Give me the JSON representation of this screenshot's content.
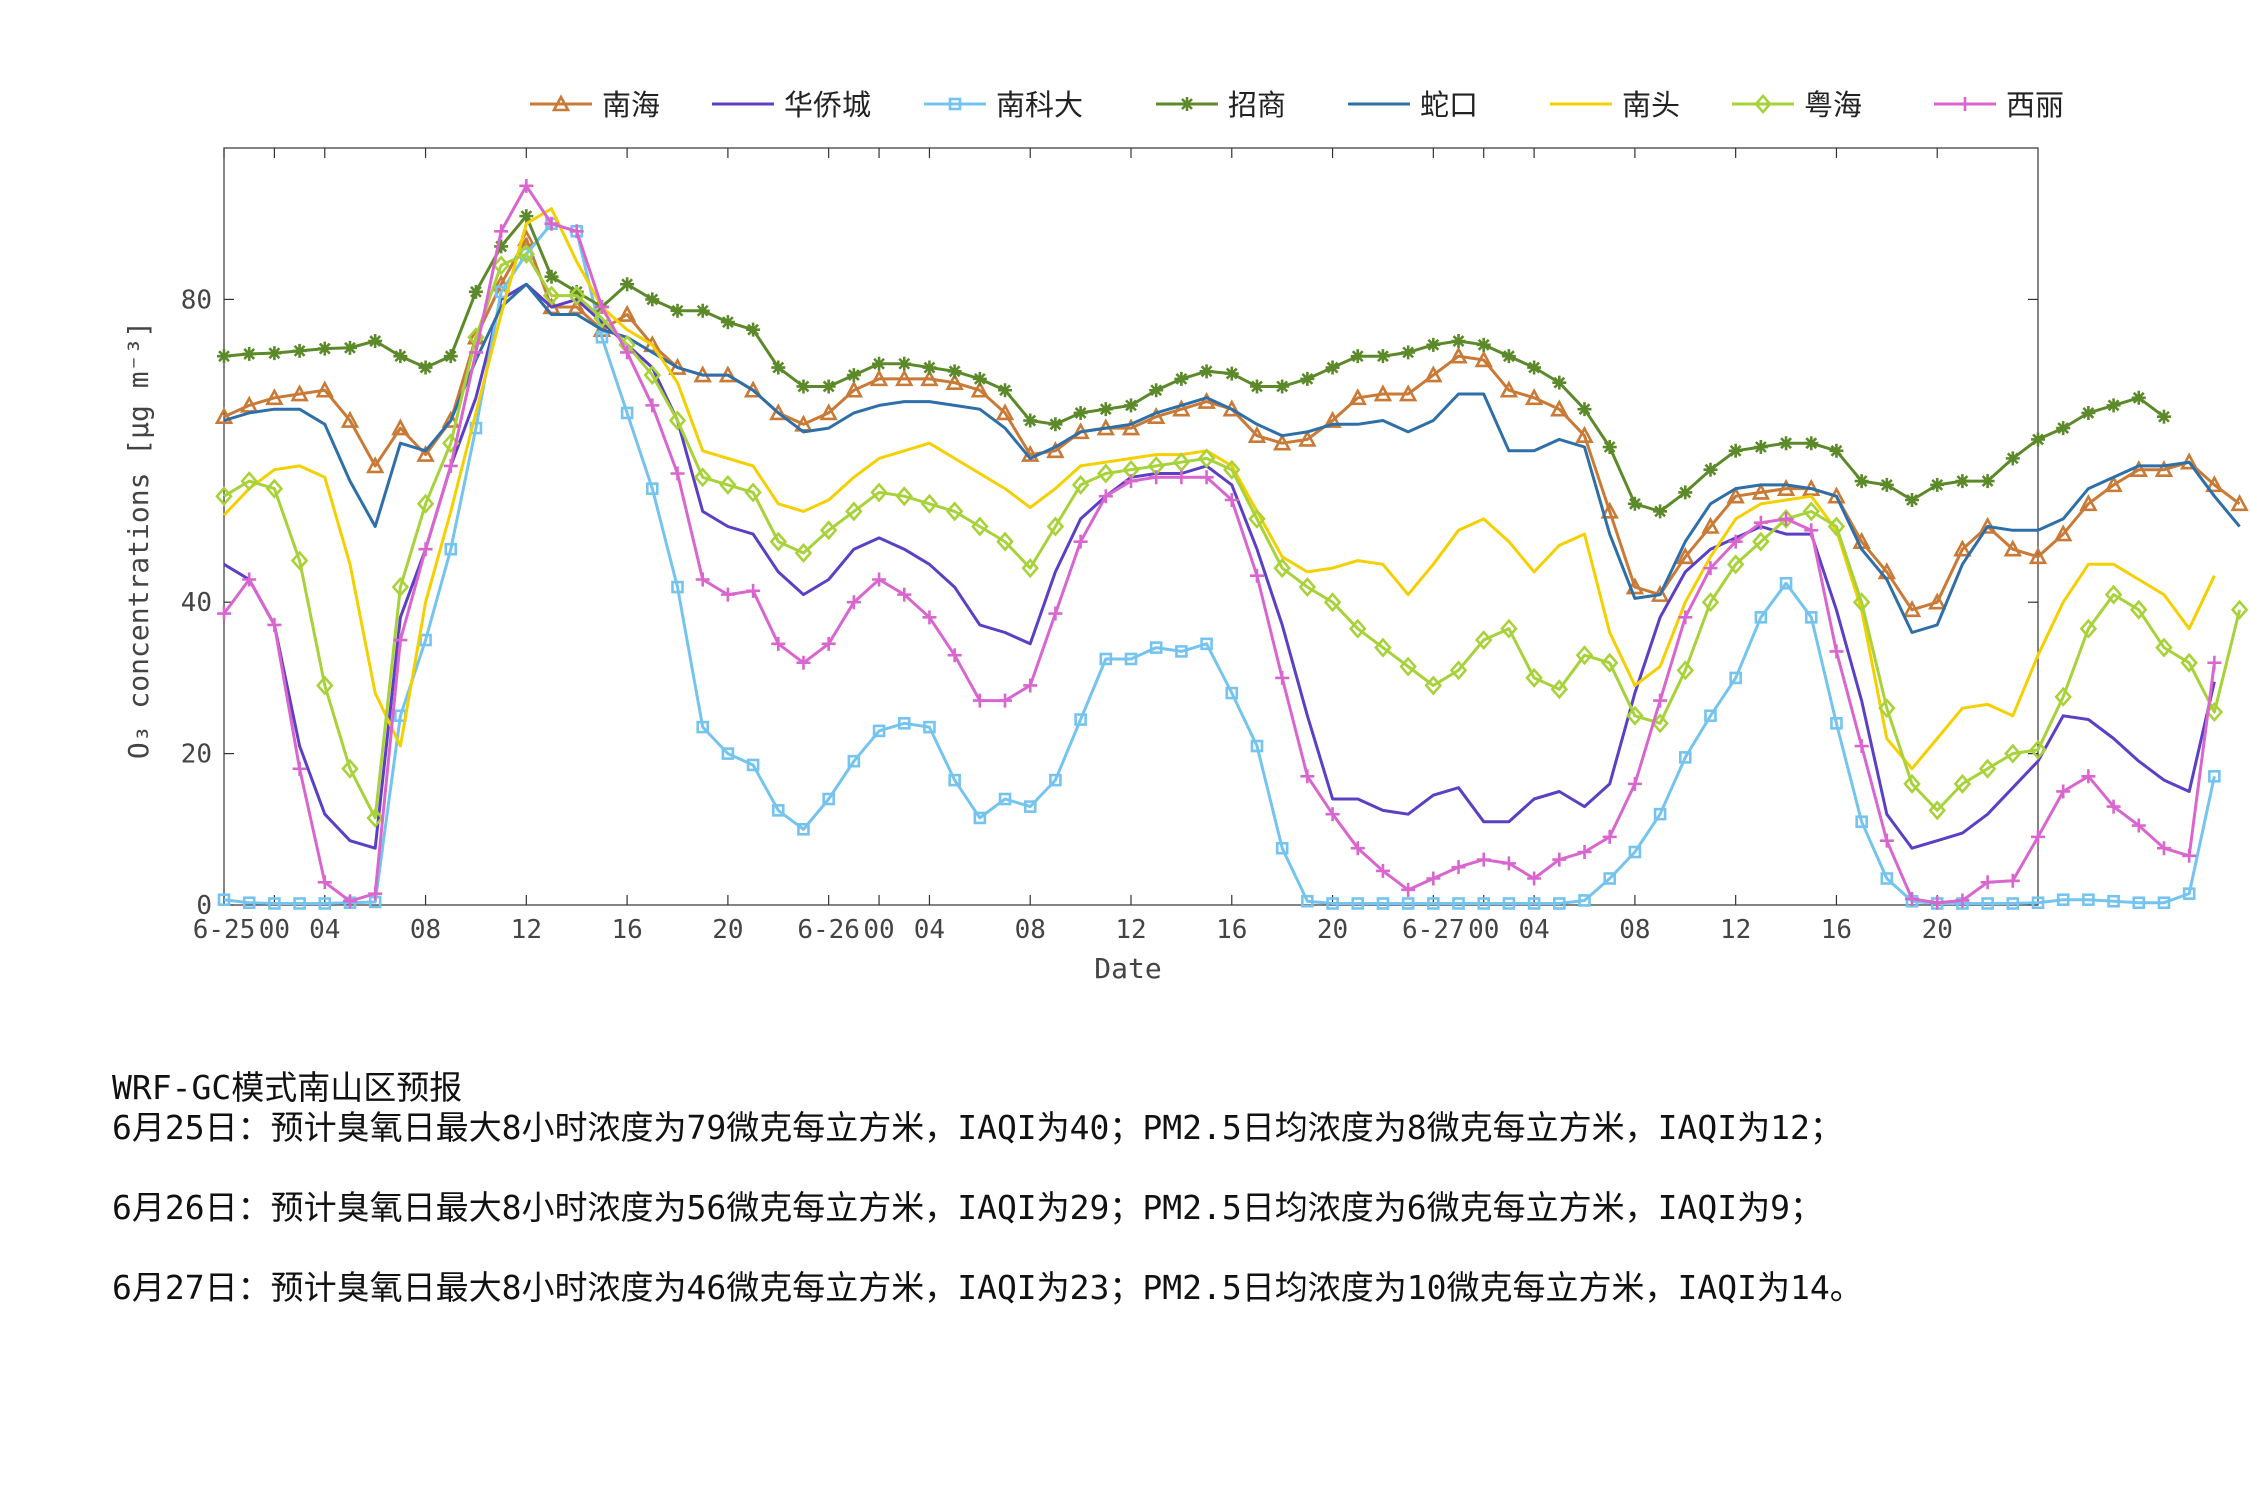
{
  "chart_data": {
    "type": "line",
    "title": "",
    "xlabel": "Date",
    "ylabel": "O₃ concentrations [μg m⁻³]",
    "ylim": [
      0,
      100
    ],
    "yticks": [
      0,
      20,
      40,
      80
    ],
    "xlim": [
      0,
      72
    ],
    "xticks": [
      {
        "x": 0,
        "label": "6-25"
      },
      {
        "x": 2,
        "label": "00"
      },
      {
        "x": 4,
        "label": "04"
      },
      {
        "x": 8,
        "label": "08"
      },
      {
        "x": 12,
        "label": "12"
      },
      {
        "x": 16,
        "label": "16"
      },
      {
        "x": 20,
        "label": "20"
      },
      {
        "x": 24,
        "label": "6-26"
      },
      {
        "x": 26,
        "label": "00"
      },
      {
        "x": 28,
        "label": "04"
      },
      {
        "x": 32,
        "label": "08"
      },
      {
        "x": 36,
        "label": "12"
      },
      {
        "x": 40,
        "label": "16"
      },
      {
        "x": 44,
        "label": "20"
      },
      {
        "x": 48,
        "label": "6-27"
      },
      {
        "x": 50,
        "label": "00"
      },
      {
        "x": 52,
        "label": "04"
      },
      {
        "x": 56,
        "label": "08"
      },
      {
        "x": 60,
        "label": "12"
      },
      {
        "x": 64,
        "label": "16"
      },
      {
        "x": 68,
        "label": "20"
      }
    ],
    "grid": false,
    "legend_position": "top",
    "series": [
      {
        "name": "南海",
        "color": "#c87a36",
        "marker": "triangle",
        "values": [
          64.5,
          66,
          67,
          67.5,
          68,
          64,
          58,
          63,
          59.5,
          64,
          75,
          82,
          88,
          79,
          79,
          76,
          78,
          74,
          71,
          70,
          70,
          68,
          65,
          63.5,
          65,
          68,
          69.5,
          69.5,
          69.5,
          69,
          68,
          65,
          59.5,
          60,
          62.5,
          63,
          63,
          64.5,
          65.5,
          66.5,
          65.5,
          62,
          61,
          61.5,
          64,
          67,
          67.5,
          67.5,
          70,
          72.5,
          72,
          68,
          67,
          65.5,
          62,
          52,
          42,
          41,
          46,
          50,
          54,
          54.5,
          55,
          55,
          54,
          48,
          44,
          39,
          40,
          47,
          50,
          47,
          46,
          49,
          53,
          55.5,
          57.5,
          57.5,
          58.5,
          55.5,
          53
        ]
      },
      {
        "name": "华侨城",
        "color": "#5b3fc4",
        "marker": "none",
        "values": [
          45,
          43,
          37,
          21,
          12,
          8.5,
          7.5,
          38,
          47,
          58,
          67,
          80,
          82,
          79,
          80,
          77,
          74,
          71,
          64,
          52,
          50,
          49,
          44,
          41,
          43,
          47,
          48.5,
          47,
          45,
          42,
          37,
          36,
          34.5,
          44,
          51,
          54,
          56.5,
          57,
          57,
          58,
          55.5,
          47,
          37,
          25,
          14,
          14,
          12.5,
          12,
          14.5,
          15.5,
          11,
          11,
          14,
          15,
          13,
          16,
          28,
          38,
          44,
          47,
          48.5,
          50,
          49,
          49,
          39,
          27,
          12,
          7.5,
          8.5,
          9.5,
          12,
          15.5,
          19,
          25,
          24.5,
          22,
          19,
          16.5,
          15,
          29.5
        ]
      },
      {
        "name": "南科大",
        "color": "#75c4ef",
        "marker": "square",
        "values": [
          0.7,
          0.3,
          0.2,
          0.2,
          0.2,
          0.3,
          0.4,
          25,
          35,
          47,
          63,
          81,
          86,
          90,
          89,
          75,
          65,
          55,
          42,
          23.5,
          20,
          18.5,
          12.5,
          10,
          14,
          19,
          23,
          24,
          23.5,
          16.5,
          11.5,
          14,
          13,
          16.5,
          24.5,
          32.5,
          32.5,
          34,
          33.5,
          34.5,
          28,
          21,
          7.5,
          0.5,
          0.2,
          0.2,
          0.2,
          0.2,
          0.2,
          0.2,
          0.2,
          0.2,
          0.2,
          0.2,
          0.6,
          3.5,
          7,
          12,
          19.5,
          25,
          30,
          38,
          42.5,
          38,
          24,
          11,
          3.5,
          0.5,
          0.2,
          0.2,
          0.2,
          0.2,
          0.3,
          0.7,
          0.7,
          0.5,
          0.3,
          0.3,
          1.5,
          17
        ]
      },
      {
        "name": "招商",
        "color": "#5c8a2a",
        "marker": "star",
        "values": [
          72.5,
          72.8,
          72.9,
          73.2,
          73.5,
          73.6,
          74.5,
          72.5,
          71,
          72.5,
          81,
          87,
          91,
          83,
          81,
          79,
          82,
          80,
          78.5,
          78.5,
          77,
          76,
          71,
          68.5,
          68.5,
          70,
          71.5,
          71.5,
          71,
          70.5,
          69.5,
          68,
          64,
          63.5,
          65,
          65.5,
          66,
          68,
          69.5,
          70.5,
          70.2,
          68.5,
          68.5,
          69.5,
          71,
          72.5,
          72.5,
          73,
          74,
          74.5,
          74,
          72.5,
          71,
          69,
          65.5,
          60.5,
          53,
          52,
          54.5,
          57.5,
          60,
          60.5,
          61,
          61,
          60,
          56,
          55.5,
          53.5,
          55.5,
          56,
          56,
          59,
          61.5,
          63,
          65,
          66,
          67,
          64.5
        ]
      },
      {
        "name": "蛇口",
        "color": "#2f6fa8",
        "marker": "none",
        "values": [
          64,
          65,
          65.5,
          65.5,
          63.5,
          56,
          50,
          61,
          60,
          64,
          72,
          79,
          82,
          78,
          78,
          76,
          75,
          73,
          71,
          70,
          70,
          68,
          65,
          62.5,
          63,
          65,
          66,
          66.5,
          66.5,
          66,
          65.5,
          63,
          59,
          60.5,
          62.5,
          63,
          63.5,
          65,
          66,
          67,
          65.5,
          63.5,
          62,
          62.5,
          63.5,
          63.5,
          64,
          62.5,
          64,
          67.5,
          67.5,
          60,
          60,
          61.5,
          60.5,
          49,
          40.5,
          41,
          48,
          53,
          55,
          55.5,
          55.5,
          55,
          54,
          47,
          43,
          36,
          37,
          45,
          50,
          49.5,
          49.5,
          51,
          55,
          56.5,
          58,
          58,
          58.5,
          54,
          50
        ]
      },
      {
        "name": "南头",
        "color": "#f5d000",
        "marker": "none",
        "values": [
          51.5,
          55,
          57.5,
          58,
          56.5,
          45,
          28,
          21,
          40,
          52,
          65,
          78,
          90,
          92,
          85,
          79,
          76,
          74,
          69,
          60,
          59,
          58,
          53,
          52,
          53.5,
          56.5,
          59,
          60,
          61,
          59,
          57,
          55,
          52.5,
          55,
          58,
          58.5,
          59,
          59.5,
          59.5,
          60,
          58,
          52,
          46,
          44,
          44.5,
          45.5,
          45,
          41,
          45,
          49.5,
          51,
          48,
          44,
          47.5,
          49,
          36,
          29,
          31.5,
          40,
          46,
          51,
          53,
          53.5,
          54,
          49.5,
          39,
          22,
          18,
          22,
          26,
          26.5,
          25,
          33,
          40,
          45,
          45,
          43,
          41,
          36.5,
          43.5
        ]
      },
      {
        "name": "粤海",
        "color": "#a8d23a",
        "marker": "diamond",
        "values": [
          54,
          56,
          55,
          45.5,
          29,
          18,
          11.5,
          42,
          53,
          61,
          75,
          84.5,
          86,
          80.5,
          80.5,
          77.5,
          74,
          70,
          64,
          56.5,
          55.5,
          54.5,
          48,
          46.5,
          49.5,
          52,
          54.5,
          54,
          53,
          52,
          50,
          48,
          44.5,
          50,
          55.5,
          57,
          57.5,
          58,
          58.5,
          59,
          57.5,
          51,
          44.5,
          42,
          40,
          36.5,
          34,
          31.5,
          29,
          31,
          35,
          36.5,
          30,
          28.5,
          33,
          32,
          25,
          24,
          31,
          40,
          45,
          48,
          51,
          52,
          50,
          40,
          26,
          16,
          12.5,
          16,
          18,
          20,
          20.5,
          27.5,
          36.5,
          41,
          39,
          34,
          32,
          25.5,
          39
        ]
      },
      {
        "name": "西丽",
        "color": "#d966cf",
        "marker": "plus",
        "values": [
          38.5,
          43,
          37,
          18,
          3,
          0.5,
          1.5,
          35,
          47,
          58,
          73,
          89,
          95,
          90,
          89,
          79,
          73,
          66,
          57,
          43,
          41,
          41.5,
          34.5,
          32,
          34.5,
          40,
          43,
          41,
          38,
          33,
          27,
          27,
          29,
          38.5,
          48,
          54,
          56,
          56.5,
          56.5,
          56.5,
          53.5,
          43.5,
          30,
          17,
          12,
          7.5,
          4.5,
          2,
          3.5,
          5,
          6,
          5.5,
          3.5,
          6,
          7,
          9,
          16,
          27,
          38,
          44.5,
          48,
          50.5,
          51,
          49.5,
          33.5,
          21,
          8.5,
          0.8,
          0.3,
          0.6,
          3,
          3.2,
          9,
          15,
          17,
          13,
          10.5,
          7.5,
          6.5,
          32
        ]
      }
    ]
  },
  "forecast": {
    "header": "WRF-GC模式南山区预报",
    "lines": [
      "6月25日：预计臭氧日最大8小时浓度为79微克每立方米，IAQI为40；PM2.5日均浓度为8微克每立方米，IAQI为12；",
      "6月26日：预计臭氧日最大8小时浓度为56微克每立方米，IAQI为29；PM2.5日均浓度为6微克每立方米，IAQI为9；",
      "6月27日：预计臭氧日最大8小时浓度为46微克每立方米，IAQI为23；PM2.5日均浓度为10微克每立方米，IAQI为14。"
    ]
  }
}
